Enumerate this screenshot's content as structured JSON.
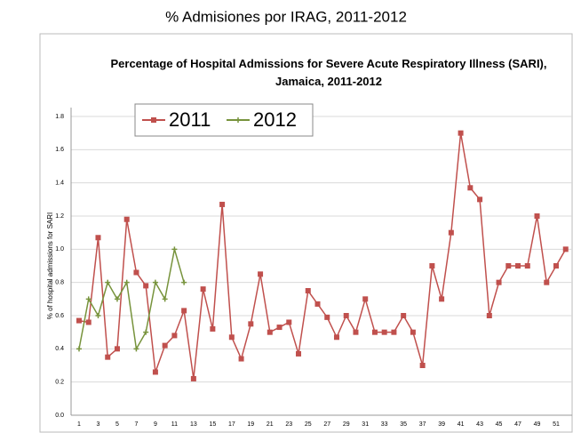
{
  "header": {
    "title": "% Admisiones por IRAG, 2011-2012"
  },
  "chart_data": {
    "type": "line",
    "title": "Percentage of Hospital Admissions for Severe Acute Respiratory Illness (SARI), Jamaica, 2011-2012",
    "y_label": "% of hospital admissions for SARI",
    "categories": [
      1,
      null,
      3,
      null,
      5,
      null,
      7,
      null,
      9,
      null,
      11,
      null,
      13,
      null,
      15,
      null,
      17,
      null,
      19,
      null,
      21,
      null,
      23,
      null,
      25,
      null,
      27,
      null,
      29,
      null,
      31,
      null,
      33,
      null,
      35,
      null,
      37,
      null,
      39,
      null,
      41,
      null,
      43,
      null,
      45,
      null,
      47,
      null,
      49,
      null,
      51,
      null
    ],
    "series": [
      {
        "name": "2011",
        "color": "#c0504d",
        "marker": "square",
        "values": [
          0.57,
          0.56,
          1.07,
          0.35,
          0.4,
          1.18,
          0.86,
          0.78,
          0.26,
          0.42,
          0.48,
          0.63,
          0.22,
          0.76,
          0.52,
          1.27,
          0.47,
          0.34,
          0.55,
          0.85,
          0.5,
          0.53,
          0.56,
          0.37,
          0.75,
          0.67,
          0.59,
          0.47,
          0.6,
          0.5,
          0.7,
          0.5,
          0.5,
          0.5,
          0.6,
          0.5,
          0.3,
          0.9,
          0.7,
          1.1,
          1.7,
          1.37,
          1.3,
          0.6,
          0.8,
          0.9,
          0.9,
          0.9,
          1.2,
          0.8,
          0.9,
          1.0
        ]
      },
      {
        "name": "2012",
        "color": "#77933c",
        "marker": "plus",
        "values": [
          0.4,
          0.7,
          0.6,
          0.8,
          0.7,
          0.8,
          0.4,
          0.5,
          0.8,
          0.7,
          1.0,
          0.8,
          null,
          null,
          null,
          null,
          null,
          null,
          null,
          null,
          null,
          null,
          null,
          null,
          null,
          null,
          null,
          null,
          null,
          null,
          null,
          null,
          null,
          null,
          null,
          null,
          null,
          null,
          null,
          null,
          null,
          null,
          null,
          null,
          null,
          null,
          null,
          null,
          null,
          null,
          null,
          null
        ]
      }
    ],
    "ylim": [
      0,
      1.8
    ],
    "yticks": [
      {
        "value": 0,
        "label": "0.0"
      },
      0.2,
      0.4,
      0.6,
      0.8,
      {
        "value": 1,
        "label": "1.0"
      },
      1.2,
      1.4,
      1.6,
      1.8
    ],
    "grid": true,
    "legend": "top-left"
  }
}
